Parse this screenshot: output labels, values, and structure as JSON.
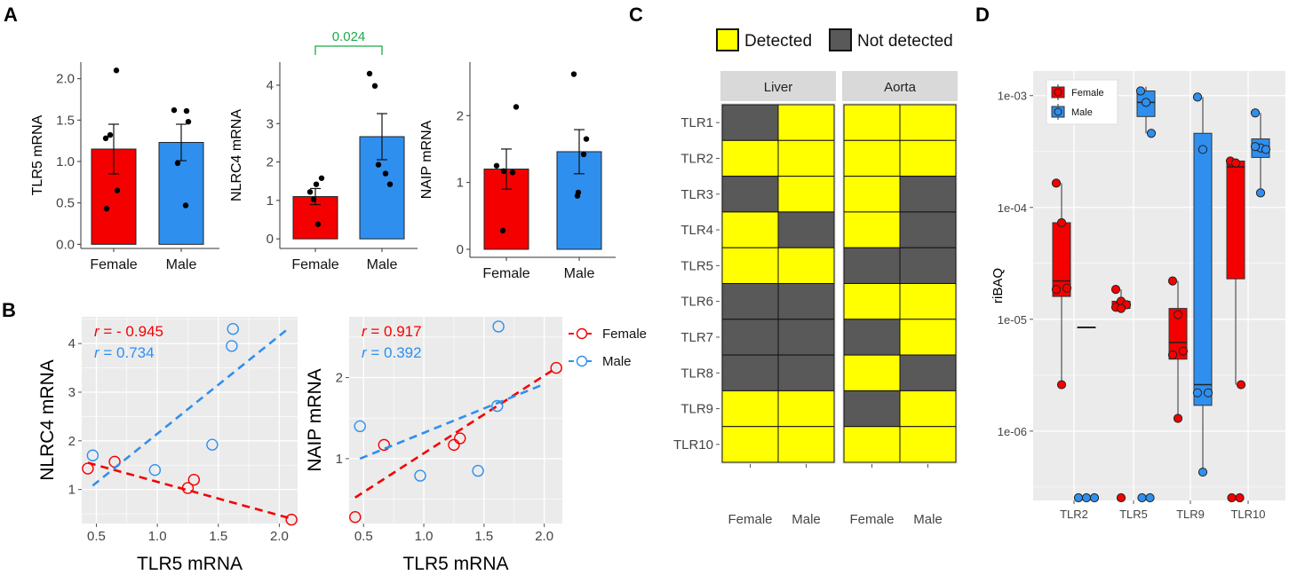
{
  "panel_labels": {
    "A": "A",
    "B": "B",
    "C": "C",
    "D": "D"
  },
  "colors": {
    "female": "#f40000",
    "male": "#2f8fef",
    "detected": "#ffff00",
    "not_detected": "#595959",
    "panel_bg": "#ebebeb",
    "grid": "#ffffff",
    "significance": "#1aab49"
  },
  "chart_data": [
    {
      "id": "A1",
      "type": "bar",
      "ylabel": "TLR5 mRNA",
      "categories": [
        "Female",
        "Male"
      ],
      "values": [
        1.15,
        1.23
      ],
      "se": [
        0.3,
        0.22
      ],
      "points": [
        [
          2.1,
          1.32,
          1.28,
          0.65,
          0.43
        ],
        [
          1.62,
          1.61,
          1.48,
          0.98,
          0.47
        ]
      ],
      "ylim": [
        -0.05,
        2.2
      ],
      "yticks": [
        0.0,
        0.5,
        1.0,
        1.5,
        2.0
      ],
      "ytick_labels": [
        "0.0",
        "0.5",
        "1.0",
        "1.5",
        "2.0"
      ]
    },
    {
      "id": "A2",
      "type": "bar",
      "ylabel": "NLRC4 mRNA",
      "categories": [
        "Female",
        "Male"
      ],
      "values": [
        1.1,
        2.66
      ],
      "se": [
        0.21,
        0.6
      ],
      "points": [
        [
          1.58,
          1.42,
          1.22,
          1.03,
          0.38
        ],
        [
          4.3,
          3.98,
          1.93,
          1.7,
          1.42
        ]
      ],
      "ylim": [
        -0.25,
        4.6
      ],
      "yticks": [
        0,
        1,
        2,
        3,
        4
      ],
      "ytick_labels": [
        "0",
        "1",
        "2",
        "3",
        "4"
      ],
      "significance": {
        "label": "0.024",
        "between": [
          "Female",
          "Male"
        ]
      }
    },
    {
      "id": "A3",
      "type": "bar",
      "ylabel": "NAIP mRNA",
      "categories": [
        "Female",
        "Male"
      ],
      "values": [
        1.2,
        1.46
      ],
      "se": [
        0.3,
        0.33
      ],
      "points": [
        [
          2.13,
          1.25,
          1.17,
          1.15,
          0.28
        ],
        [
          2.62,
          1.65,
          1.42,
          0.85,
          0.8
        ]
      ],
      "ylim": [
        -0.12,
        2.8
      ],
      "yticks": [
        0,
        1,
        2
      ],
      "ytick_labels": [
        "0",
        "1",
        "2"
      ]
    },
    {
      "id": "B1",
      "type": "scatter",
      "xlabel": "TLR5 mRNA",
      "ylabel": "NLRC4 mRNA",
      "xlim": [
        0.38,
        2.15
      ],
      "ylim": [
        0.3,
        4.55
      ],
      "xticks": [
        0.5,
        1.0,
        1.5,
        2.0
      ],
      "xtick_labels": [
        "0.5",
        "1.0",
        "1.5",
        "2.0"
      ],
      "yticks": [
        1,
        2,
        3,
        4
      ],
      "ytick_labels": [
        "1",
        "2",
        "3",
        "4"
      ],
      "series": [
        {
          "name": "Female",
          "x": [
            0.43,
            0.65,
            1.25,
            1.3,
            2.1
          ],
          "y": [
            1.43,
            1.57,
            1.03,
            1.2,
            0.38
          ],
          "fit": [
            [
              0.43,
              1.55
            ],
            [
              2.1,
              0.4
            ]
          ],
          "r_label": "r",
          "r_value": "= - 0.945"
        },
        {
          "name": "Male",
          "x": [
            0.47,
            0.98,
            1.45,
            1.61,
            1.62
          ],
          "y": [
            1.7,
            1.4,
            1.92,
            3.95,
            4.3
          ],
          "fit": [
            [
              0.47,
              1.08
            ],
            [
              2.08,
              4.32
            ]
          ],
          "r_label": "r",
          "r_value": "= 0.734"
        }
      ]
    },
    {
      "id": "B2",
      "type": "scatter",
      "xlabel": "TLR5 mRNA",
      "ylabel": "NAIP mRNA",
      "xlim": [
        0.38,
        2.15
      ],
      "ylim": [
        0.2,
        2.75
      ],
      "xticks": [
        0.5,
        1.0,
        1.5,
        2.0
      ],
      "xtick_labels": [
        "0.5",
        "1.0",
        "1.5",
        "2.0"
      ],
      "yticks": [
        1,
        2
      ],
      "ytick_labels": [
        "1",
        "2"
      ],
      "series": [
        {
          "name": "Female",
          "x": [
            0.43,
            0.67,
            1.25,
            1.3,
            2.1
          ],
          "y": [
            0.28,
            1.17,
            1.17,
            1.25,
            2.12
          ],
          "fit": [
            [
              0.43,
              0.52
            ],
            [
              2.1,
              2.12
            ]
          ],
          "r_label": "r",
          "r_value": "= 0.917"
        },
        {
          "name": "Male",
          "x": [
            0.47,
            0.97,
            1.45,
            1.61,
            1.62
          ],
          "y": [
            1.4,
            0.79,
            0.85,
            1.65,
            2.63
          ],
          "fit": [
            [
              0.47,
              1.0
            ],
            [
              2.0,
              1.92
            ]
          ],
          "r_label": "r",
          "r_value": "= 0.392"
        }
      ],
      "legend": [
        "Female",
        "Male"
      ]
    },
    {
      "id": "C",
      "type": "heatmap",
      "legend": [
        "Detected",
        "Not detected"
      ],
      "facets": [
        "Liver",
        "Aorta"
      ],
      "rows": [
        "TLR1",
        "TLR2",
        "TLR3",
        "TLR4",
        "TLR5",
        "TLR6",
        "TLR7",
        "TLR8",
        "TLR9",
        "TLR10"
      ],
      "columns": [
        "Female",
        "Male"
      ],
      "values": {
        "Liver": [
          [
            0,
            1
          ],
          [
            1,
            1
          ],
          [
            0,
            1
          ],
          [
            1,
            0
          ],
          [
            1,
            1
          ],
          [
            0,
            0
          ],
          [
            0,
            0
          ],
          [
            0,
            0
          ],
          [
            1,
            1
          ],
          [
            1,
            1
          ]
        ],
        "Aorta": [
          [
            1,
            1
          ],
          [
            1,
            1
          ],
          [
            1,
            0
          ],
          [
            1,
            0
          ],
          [
            0,
            0
          ],
          [
            1,
            1
          ],
          [
            0,
            1
          ],
          [
            1,
            0
          ],
          [
            0,
            1
          ],
          [
            1,
            1
          ]
        ]
      }
    },
    {
      "id": "D",
      "type": "boxplot",
      "ylabel": "riBAQ",
      "yscale": "log",
      "categories": [
        "TLR2",
        "TLR5",
        "TLR9",
        "TLR10"
      ],
      "yticks": [
        1e-06,
        1e-05,
        0.0001,
        0.001
      ],
      "ytick_labels": [
        "1e-06",
        "1e-05",
        "1e-04",
        "1e-03"
      ],
      "ylim_log10": [
        -6.62,
        -2.78
      ],
      "floor_log10": -6.62,
      "legend": [
        "Female",
        "Male"
      ],
      "series": [
        {
          "name": "Female",
          "boxes": [
            {
              "cat": "TLR2",
              "min": 2.6e-06,
              "q1": 1.6e-05,
              "med": 2.2e-05,
              "q3": 7.3e-05,
              "max": 0.000165,
              "points": [
                0.000165,
                7.3e-05,
                1.9e-05,
                1.85e-05,
                2.6e-06
              ]
            },
            {
              "cat": "TLR5",
              "min": 1.25e-05,
              "q1": 1.25e-05,
              "med": 1.3e-05,
              "q3": 1.45e-05,
              "max": 1.85e-05,
              "points": [
                1.85e-05,
                1.45e-05,
                1.35e-05,
                1.28e-05,
                1.25e-05
              ]
            },
            {
              "cat": "TLR9",
              "min": 1.3e-06,
              "q1": 4.4e-06,
              "med": 6.2e-06,
              "q3": 1.25e-05,
              "max": 2.2e-05,
              "points": [
                2.2e-05,
                1.1e-05,
                5.2e-06,
                4.8e-06,
                1.3e-06
              ]
            },
            {
              "cat": "TLR10",
              "min": 2.6e-06,
              "q1": 2.3e-05,
              "med": 0.00023,
              "q3": 0.00026,
              "max": 0.00026,
              "points": [
                0.00026,
                0.00025,
                2.6e-06
              ]
            }
          ],
          "floor_counts": [
            0,
            1,
            0,
            2
          ]
        },
        {
          "name": "Male",
          "boxes": [
            {
              "cat": "TLR2",
              "min": 8.5e-06,
              "q1": 8.5e-06,
              "med": 8.5e-06,
              "q3": 8.5e-06,
              "max": 8.5e-06,
              "points": []
            },
            {
              "cat": "TLR5",
              "min": 0.00046,
              "q1": 0.00065,
              "med": 0.00087,
              "q3": 0.0011,
              "max": 0.0012,
              "points": [
                0.0011,
                0.00087,
                0.00046
              ]
            },
            {
              "cat": "TLR9",
              "min": 4.3e-07,
              "q1": 1.7e-06,
              "med": 2.6e-06,
              "q3": 0.00046,
              "max": 0.00097,
              "points": [
                0.00097,
                0.00033,
                2.2e-06,
                2.2e-06,
                4.3e-07
              ]
            },
            {
              "cat": "TLR10",
              "min": 0.000135,
              "q1": 0.00028,
              "med": 0.00034,
              "q3": 0.00041,
              "max": 0.0007,
              "points": [
                0.0007,
                0.00034,
                0.00033,
                0.00035,
                0.000135
              ]
            }
          ],
          "floor_counts": [
            3,
            2,
            0,
            0
          ]
        }
      ]
    }
  ]
}
